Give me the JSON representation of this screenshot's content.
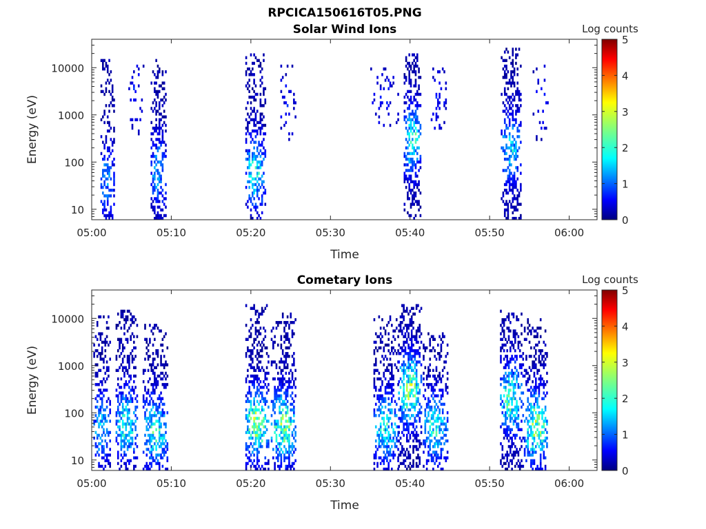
{
  "figure_title": "RPCICA150616T05.PNG",
  "chart_data": [
    {
      "type": "heatmap",
      "title": "Solar Wind Ions",
      "xlabel": "Time",
      "ylabel": "Energy (eV)",
      "x_ticks": [
        "05:00",
        "05:10",
        "05:20",
        "05:30",
        "05:40",
        "05:50",
        "06:00"
      ],
      "x_range_minutes": [
        0,
        63.5
      ],
      "y_scale": "log",
      "y_ticks": [
        "10",
        "100",
        "1000",
        "10000"
      ],
      "y_range_eV": [
        6,
        40000
      ],
      "colorbar": {
        "label": "Log counts",
        "range": [
          0,
          5
        ],
        "ticks": [
          "0",
          "1",
          "2",
          "3",
          "4",
          "5"
        ],
        "colormap": "jet"
      },
      "bursts": [
        {
          "start_min": 1.1,
          "end_min": 2.8,
          "elo_eV": 6,
          "ehi_eV": 16000,
          "peak_eV": 40,
          "peak_log": 1.3,
          "density": 0.5
        },
        {
          "start_min": 4.6,
          "end_min": 6.5,
          "elo_eV": 300,
          "ehi_eV": 12000,
          "peak_eV": 3000,
          "peak_log": 0.6,
          "density": 0.15
        },
        {
          "start_min": 7.4,
          "end_min": 9.2,
          "elo_eV": 6,
          "ehi_eV": 15000,
          "peak_eV": 60,
          "peak_log": 1.4,
          "density": 0.55
        },
        {
          "start_min": 19.3,
          "end_min": 21.8,
          "elo_eV": 6,
          "ehi_eV": 20000,
          "peak_eV": 60,
          "peak_log": 1.9,
          "density": 0.5
        },
        {
          "start_min": 23.5,
          "end_min": 25.5,
          "elo_eV": 300,
          "ehi_eV": 12000,
          "peak_eV": 2000,
          "peak_log": 0.5,
          "density": 0.15
        },
        {
          "start_min": 35.0,
          "end_min": 38.5,
          "elo_eV": 400,
          "ehi_eV": 10000,
          "peak_eV": 2000,
          "peak_log": 0.5,
          "density": 0.12
        },
        {
          "start_min": 39.2,
          "end_min": 41.4,
          "elo_eV": 6,
          "ehi_eV": 20000,
          "peak_eV": 300,
          "peak_log": 2.0,
          "density": 0.55
        },
        {
          "start_min": 42.6,
          "end_min": 44.7,
          "elo_eV": 500,
          "ehi_eV": 12000,
          "peak_eV": 2000,
          "peak_log": 0.5,
          "density": 0.15
        },
        {
          "start_min": 51.4,
          "end_min": 54.0,
          "elo_eV": 6,
          "ehi_eV": 25000,
          "peak_eV": 200,
          "peak_log": 1.6,
          "density": 0.5
        },
        {
          "start_min": 55.4,
          "end_min": 57.3,
          "elo_eV": 300,
          "ehi_eV": 12000,
          "peak_eV": 2000,
          "peak_log": 0.6,
          "density": 0.2
        }
      ]
    },
    {
      "type": "heatmap",
      "title": "Cometary Ions",
      "xlabel": "Time",
      "ylabel": "Energy (eV)",
      "x_ticks": [
        "05:00",
        "05:10",
        "05:20",
        "05:30",
        "05:40",
        "05:50",
        "06:00"
      ],
      "x_range_minutes": [
        0,
        63.5
      ],
      "y_scale": "log",
      "y_ticks": [
        "10",
        "100",
        "1000",
        "10000"
      ],
      "y_range_eV": [
        6,
        40000
      ],
      "colorbar": {
        "label": "Log counts",
        "range": [
          0,
          5
        ],
        "ticks": [
          "0",
          "1",
          "2",
          "3",
          "4",
          "5"
        ],
        "colormap": "jet"
      },
      "bursts": [
        {
          "start_min": 0.2,
          "end_min": 2.2,
          "elo_eV": 6,
          "ehi_eV": 12000,
          "peak_eV": 50,
          "peak_log": 1.6,
          "density": 0.5
        },
        {
          "start_min": 3.0,
          "end_min": 5.8,
          "elo_eV": 6,
          "ehi_eV": 15000,
          "peak_eV": 60,
          "peak_log": 2.0,
          "density": 0.55
        },
        {
          "start_min": 6.4,
          "end_min": 9.4,
          "elo_eV": 6,
          "ehi_eV": 8000,
          "peak_eV": 40,
          "peak_log": 2.1,
          "density": 0.55
        },
        {
          "start_min": 19.3,
          "end_min": 22.2,
          "elo_eV": 6,
          "ehi_eV": 20000,
          "peak_eV": 60,
          "peak_log": 2.6,
          "density": 0.55
        },
        {
          "start_min": 22.5,
          "end_min": 25.6,
          "elo_eV": 6,
          "ehi_eV": 15000,
          "peak_eV": 50,
          "peak_log": 2.5,
          "density": 0.55
        },
        {
          "start_min": 35.4,
          "end_min": 38.5,
          "elo_eV": 6,
          "ehi_eV": 12000,
          "peak_eV": 50,
          "peak_log": 1.9,
          "density": 0.5
        },
        {
          "start_min": 38.5,
          "end_min": 41.5,
          "elo_eV": 6,
          "ehi_eV": 20000,
          "peak_eV": 300,
          "peak_log": 2.6,
          "density": 0.55
        },
        {
          "start_min": 41.6,
          "end_min": 44.7,
          "elo_eV": 6,
          "ehi_eV": 5000,
          "peak_eV": 50,
          "peak_log": 1.9,
          "density": 0.55
        },
        {
          "start_min": 51.3,
          "end_min": 54.2,
          "elo_eV": 6,
          "ehi_eV": 15000,
          "peak_eV": 200,
          "peak_log": 2.2,
          "density": 0.55
        },
        {
          "start_min": 54.3,
          "end_min": 57.3,
          "elo_eV": 6,
          "ehi_eV": 10000,
          "peak_eV": 50,
          "peak_log": 2.6,
          "density": 0.55
        }
      ]
    }
  ]
}
